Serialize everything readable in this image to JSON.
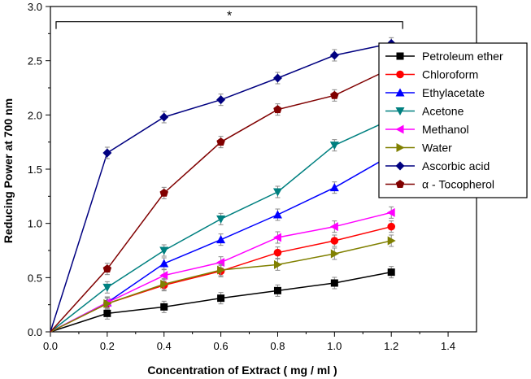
{
  "chart_data": {
    "type": "line",
    "title": "",
    "xlabel": "Concentration of Extract ( mg / ml )",
    "ylabel": "Reducing Power at 700 nm",
    "xlim": [
      0.0,
      1.5
    ],
    "ylim": [
      0.0,
      3.0
    ],
    "xticks": [
      0.0,
      0.2,
      0.4,
      0.6,
      0.8,
      1.0,
      1.2,
      1.4
    ],
    "xtick_labels": [
      "0.0",
      "0.2",
      "0.4",
      "0.6",
      "0.8",
      "1.0",
      "1.2",
      "1.4"
    ],
    "yticks": [
      0.0,
      0.5,
      1.0,
      1.5,
      2.0,
      2.5,
      3.0
    ],
    "ytick_labels": [
      "0.0",
      "0.5",
      "1.0",
      "1.5",
      "2.0",
      "2.5",
      "3.0"
    ],
    "x": [
      0.0,
      0.2,
      0.4,
      0.6,
      0.8,
      1.0,
      1.2
    ],
    "grid": false,
    "legend_position": "right",
    "annotation": {
      "text": "*",
      "bracket_x_start": 0.02,
      "bracket_x_end": 1.24,
      "bracket_y": 2.86
    },
    "series": [
      {
        "name": "Petroleum ether",
        "marker": "square",
        "color": "#000000",
        "values": [
          0.0,
          0.17,
          0.23,
          0.31,
          0.38,
          0.45,
          0.55
        ]
      },
      {
        "name": "Chloroform",
        "marker": "circle",
        "color": "#ff0000",
        "values": [
          0.0,
          0.26,
          0.43,
          0.56,
          0.73,
          0.84,
          0.97
        ]
      },
      {
        "name": "Ethylacetate",
        "marker": "triangle-up",
        "color": "#0000ff",
        "values": [
          0.0,
          0.27,
          0.63,
          0.85,
          1.08,
          1.33,
          1.63
        ]
      },
      {
        "name": "Acetone",
        "marker": "triangle-down",
        "color": "#008080",
        "values": [
          0.0,
          0.41,
          0.75,
          1.04,
          1.29,
          1.72,
          1.96
        ]
      },
      {
        "name": "Methanol",
        "marker": "triangle-left",
        "color": "#ff00ff",
        "values": [
          0.0,
          0.27,
          0.52,
          0.64,
          0.87,
          0.97,
          1.1
        ]
      },
      {
        "name": "Water",
        "marker": "triangle-right",
        "color": "#808000",
        "values": [
          0.0,
          0.26,
          0.44,
          0.57,
          0.62,
          0.72,
          0.84
        ]
      },
      {
        "name": "Ascorbic acid",
        "marker": "diamond",
        "color": "#000080",
        "values": [
          0.0,
          1.65,
          1.98,
          2.14,
          2.34,
          2.55,
          2.66
        ]
      },
      {
        "name": "α - Tocopherol",
        "marker": "pentagon",
        "color": "#800000",
        "values": [
          0.0,
          0.58,
          1.28,
          1.75,
          2.05,
          2.18,
          2.43
        ]
      }
    ]
  }
}
